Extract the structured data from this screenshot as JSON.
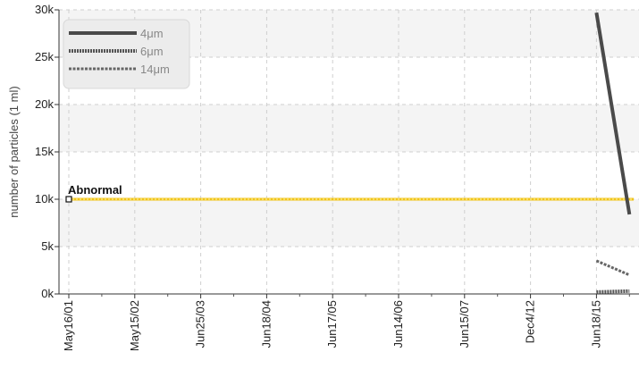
{
  "chart_data": {
    "type": "line",
    "ylabel": "number of particles (1 ml)",
    "ylim": [
      0,
      30000
    ],
    "y_ticks": [
      {
        "value": 0,
        "label": "0k"
      },
      {
        "value": 5000,
        "label": "5k"
      },
      {
        "value": 10000,
        "label": "10k"
      },
      {
        "value": 15000,
        "label": "15k"
      },
      {
        "value": 20000,
        "label": "20k"
      },
      {
        "value": 25000,
        "label": "25k"
      },
      {
        "value": 30000,
        "label": "30k"
      }
    ],
    "categories": [
      "May16/01",
      "May15/02",
      "Jun25/03",
      "Jun18/04",
      "Jun17/05",
      "Jun14/06",
      "Jun15/07",
      "Dec4/12",
      "Jun18/15"
    ],
    "grid": true,
    "legend_position": "top-left",
    "series": [
      {
        "name": "4μm",
        "style": "solid",
        "color": "#4a4a4a",
        "points": [
          {
            "x": 8.0,
            "y": 29700
          },
          {
            "x": 8.5,
            "y": 8400
          }
        ]
      },
      {
        "name": "6μm",
        "style": "dotted",
        "color": "#555555",
        "points": [
          {
            "x": 8.0,
            "y": 200
          },
          {
            "x": 8.5,
            "y": 300
          }
        ]
      },
      {
        "name": "14μm",
        "style": "dashed",
        "color": "#666666",
        "points": [
          {
            "x": 8.0,
            "y": 3500
          },
          {
            "x": 8.5,
            "y": 2000
          }
        ]
      }
    ],
    "threshold": {
      "label": "Abnormal",
      "value": 10000,
      "color": "#f0c419"
    }
  }
}
